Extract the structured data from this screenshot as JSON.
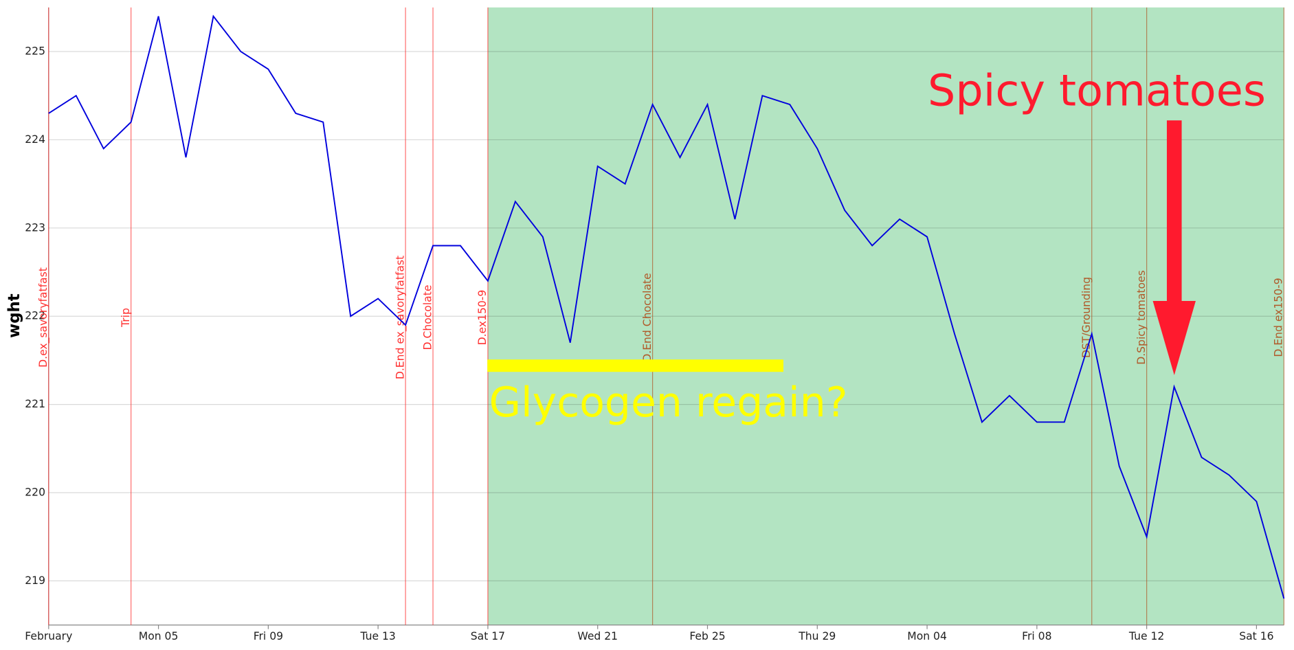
{
  "chart_data": {
    "type": "line",
    "y_label": "wght",
    "color": "#0000dd",
    "x": [
      "02-01",
      "02-02",
      "02-03",
      "02-04",
      "02-05",
      "02-06",
      "02-07",
      "02-08",
      "02-09",
      "02-10",
      "02-11",
      "02-12",
      "02-13",
      "02-14",
      "02-15",
      "02-16",
      "02-17",
      "02-18",
      "02-19",
      "02-20",
      "02-21",
      "02-22",
      "02-23",
      "02-24",
      "02-25",
      "02-26",
      "02-27",
      "02-28",
      "02-29",
      "03-01",
      "03-02",
      "03-03",
      "03-04",
      "03-05",
      "03-06",
      "03-07",
      "03-08",
      "03-09",
      "03-10",
      "03-11",
      "03-12",
      "03-13",
      "03-14",
      "03-15",
      "03-16",
      "03-17"
    ],
    "values": [
      224.3,
      224.5,
      223.9,
      224.2,
      225.4,
      223.8,
      225.4,
      225.0,
      224.8,
      224.3,
      224.2,
      222.0,
      222.2,
      221.9,
      222.8,
      222.8,
      222.4,
      223.3,
      222.9,
      221.7,
      223.7,
      223.5,
      224.4,
      223.8,
      224.4,
      223.1,
      224.5,
      224.4,
      223.9,
      223.2,
      222.8,
      223.1,
      222.9,
      221.8,
      220.8,
      221.1,
      220.8,
      220.8,
      221.8,
      220.3,
      219.5,
      221.2,
      220.4,
      220.2,
      219.9,
      218.8
    ],
    "xlim": [
      "02-01",
      "03-17"
    ],
    "xticks": [
      {
        "value": "02-01",
        "label": "February"
      },
      {
        "value": "02-05",
        "label": "Mon 05"
      },
      {
        "value": "02-09",
        "label": "Fri 09"
      },
      {
        "value": "02-13",
        "label": "Tue 13"
      },
      {
        "value": "02-17",
        "label": "Sat 17"
      },
      {
        "value": "02-21",
        "label": "Wed 21"
      },
      {
        "value": "02-25",
        "label": "Feb 25"
      },
      {
        "value": "02-29",
        "label": "Thu 29"
      },
      {
        "value": "03-04",
        "label": "Mon 04"
      },
      {
        "value": "03-08",
        "label": "Fri 08"
      },
      {
        "value": "03-12",
        "label": "Tue 12"
      },
      {
        "value": "03-16",
        "label": "Sat 16"
      }
    ],
    "ylim": [
      218.5,
      225.5
    ],
    "yticks": [
      219,
      220,
      221,
      222,
      223,
      224,
      225
    ],
    "grid": true,
    "shaded_region": {
      "start": "02-17",
      "end": "03-17",
      "color": "#b3e4c2"
    },
    "events": [
      {
        "x": "02-01",
        "label": "D.ex_savoryfatfast",
        "color": "#ff3030"
      },
      {
        "x": "02-04",
        "label": "Trip",
        "color": "#ff3030"
      },
      {
        "x": "02-14",
        "label": "D.End ex_savoryfatfast",
        "color": "#ff3030"
      },
      {
        "x": "02-15",
        "label": "D.Chocolate",
        "color": "#ff3030"
      },
      {
        "x": "02-17",
        "label": "D.ex150-9",
        "color": "#ff3030"
      },
      {
        "x": "02-23",
        "label": "D.End Chocolate",
        "color": "#b05a2a"
      },
      {
        "x": "03-10",
        "label": "DST/Grounding",
        "color": "#b05a2a"
      },
      {
        "x": "03-12",
        "label": "D.Spicy tomatoes",
        "color": "#b05a2a"
      },
      {
        "x": "03-17",
        "label": "D.End ex150-9",
        "color": "#b05a2a"
      }
    ],
    "annotations": [
      {
        "text": "Glycogen regain?",
        "color": "#ffff00"
      },
      {
        "text": "Spicy tomatoes",
        "color": "#ff1a2e"
      }
    ]
  }
}
